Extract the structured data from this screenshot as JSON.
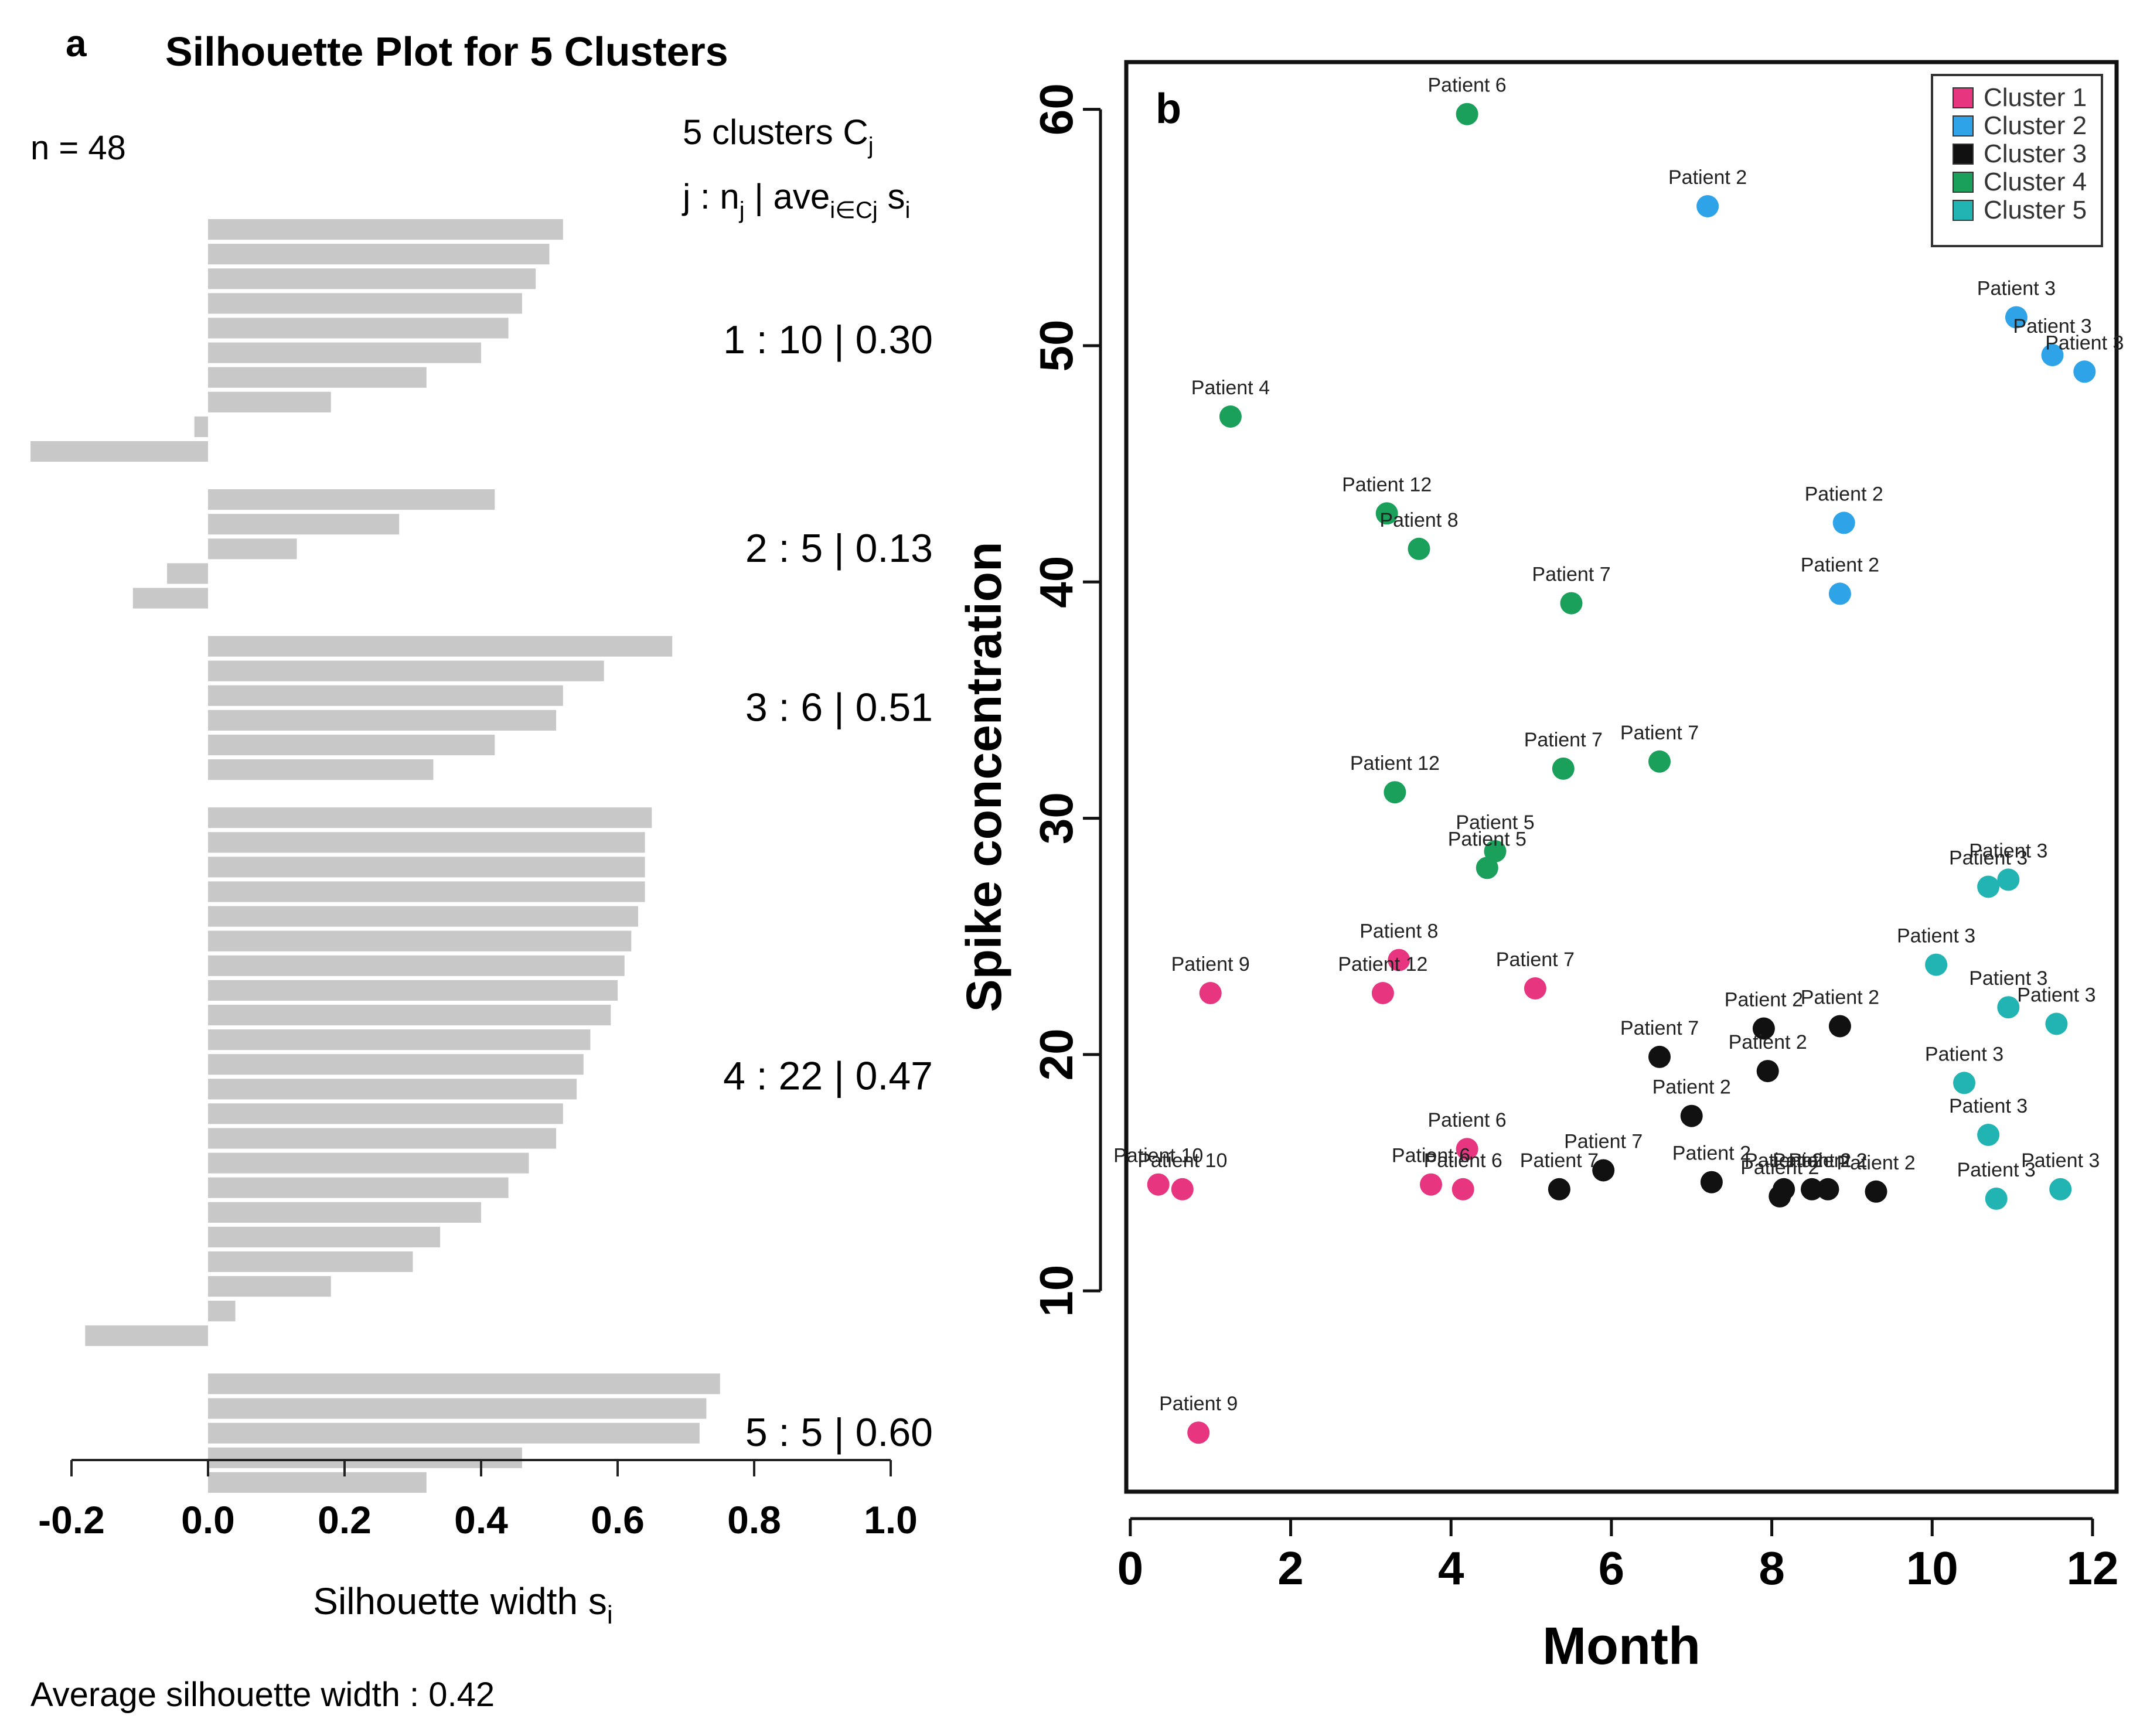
{
  "chart_data": [
    {
      "panel_label": "a",
      "type": "bar",
      "orientation": "horizontal",
      "title": "Silhouette Plot for 5 Clusters",
      "n_label": "n = 48",
      "header_line1": "5  clusters  C",
      "header_line1_sub": "j",
      "header_line2_a": "j :  n",
      "header_line2_sub1": "j",
      "header_line2_b": " | ave",
      "header_line2_sub2": "i∈Cj",
      "header_line2_c": "  s",
      "header_line2_sub3": "i",
      "xlabel": "Silhouette width s",
      "xlabel_sub": "i",
      "xlim": [
        -0.2,
        1.0
      ],
      "xticks": [
        -0.2,
        0.0,
        0.2,
        0.4,
        0.6,
        0.8,
        1.0
      ],
      "xtick_labels": [
        "-0.2",
        "0.0",
        "0.2",
        "0.4",
        "0.6",
        "0.8",
        "1.0"
      ],
      "footer": "Average silhouette width :  0.42",
      "bar_color": "#c8c8c8",
      "clusters": [
        {
          "summary": "1 :  10  |  0.30",
          "values": [
            0.52,
            0.5,
            0.48,
            0.46,
            0.44,
            0.4,
            0.32,
            0.18,
            -0.02,
            -0.26
          ]
        },
        {
          "summary": "2 :  5  |  0.13",
          "values": [
            0.42,
            0.28,
            0.13,
            -0.06,
            -0.11
          ]
        },
        {
          "summary": "3 :  6  |  0.51",
          "values": [
            0.68,
            0.58,
            0.52,
            0.51,
            0.42,
            0.33
          ]
        },
        {
          "summary": "4 :  22  |  0.47",
          "values": [
            0.65,
            0.64,
            0.64,
            0.64,
            0.63,
            0.62,
            0.61,
            0.6,
            0.59,
            0.56,
            0.55,
            0.54,
            0.52,
            0.51,
            0.47,
            0.44,
            0.4,
            0.34,
            0.3,
            0.18,
            0.04,
            -0.18
          ]
        },
        {
          "summary": "5 :  5  |  0.60",
          "values": [
            0.75,
            0.73,
            0.72,
            0.46,
            0.32
          ]
        }
      ]
    },
    {
      "panel_label": "b",
      "type": "scatter",
      "xlabel": "Month",
      "ylabel": "Spike concentration",
      "xlim": [
        -0.05,
        12.3
      ],
      "ylim": [
        1.5,
        62
      ],
      "xticks": [
        0,
        2,
        4,
        6,
        8,
        10,
        12
      ],
      "xtick_labels": [
        "0",
        "2",
        "4",
        "6",
        "8",
        "10",
        "12"
      ],
      "yticks": [
        10,
        20,
        30,
        40,
        50,
        60
      ],
      "ytick_labels": [
        "10",
        "20",
        "30",
        "40",
        "50",
        "60"
      ],
      "legend_position": "top-right",
      "series": [
        {
          "name": "Cluster 1",
          "color": "#e8357f",
          "points": [
            {
              "x": 1.0,
              "y": 22.6,
              "label": "Patient 9"
            },
            {
              "x": 0.85,
              "y": 4.0,
              "label": "Patient 9"
            },
            {
              "x": 3.35,
              "y": 24.0,
              "label": "Patient 8"
            },
            {
              "x": 3.15,
              "y": 22.6,
              "label": "Patient 12"
            },
            {
              "x": 5.05,
              "y": 22.8,
              "label": "Patient 7"
            },
            {
              "x": 4.2,
              "y": 16.0,
              "label": "Patient 6"
            },
            {
              "x": 3.75,
              "y": 14.5,
              "label": "Patient 6"
            },
            {
              "x": 4.15,
              "y": 14.3,
              "label": "Patient 6"
            },
            {
              "x": 0.35,
              "y": 14.5,
              "label": "Patient 10"
            },
            {
              "x": 0.65,
              "y": 14.3,
              "label": "Patient 10"
            }
          ]
        },
        {
          "name": "Cluster 2",
          "color": "#2ea3e8",
          "points": [
            {
              "x": 7.2,
              "y": 55.9,
              "label": "Patient 2"
            },
            {
              "x": 11.05,
              "y": 51.2,
              "label": "Patient 3"
            },
            {
              "x": 11.5,
              "y": 49.6,
              "label": "Patient 3"
            },
            {
              "x": 11.9,
              "y": 48.9,
              "label": "Patient 3"
            },
            {
              "x": 8.9,
              "y": 42.5,
              "label": "Patient 2"
            },
            {
              "x": 8.85,
              "y": 39.5,
              "label": "Patient 2"
            }
          ]
        },
        {
          "name": "Cluster 3",
          "color": "#111111",
          "points": [
            {
              "x": 6.6,
              "y": 19.9,
              "label": "Patient 7"
            },
            {
              "x": 7.9,
              "y": 21.1,
              "label": "Patient 2"
            },
            {
              "x": 8.85,
              "y": 21.2,
              "label": "Patient 2"
            },
            {
              "x": 7.95,
              "y": 19.3,
              "label": "Patient 2"
            },
            {
              "x": 7.0,
              "y": 17.4,
              "label": "Patient 2"
            },
            {
              "x": 5.9,
              "y": 15.1,
              "label": "Patient 7"
            },
            {
              "x": 5.35,
              "y": 14.3,
              "label": "Patient 7"
            },
            {
              "x": 7.25,
              "y": 14.6,
              "label": "Patient 2"
            },
            {
              "x": 8.1,
              "y": 14.0,
              "label": "Patient 2"
            },
            {
              "x": 8.15,
              "y": 14.3,
              "label": "Patient 2"
            },
            {
              "x": 8.5,
              "y": 14.3,
              "label": "Patient 2"
            },
            {
              "x": 8.7,
              "y": 14.3,
              "label": "Patient 2"
            },
            {
              "x": 9.3,
              "y": 14.2,
              "label": "Patient 2"
            }
          ]
        },
        {
          "name": "Cluster 4",
          "color": "#1aa05a",
          "points": [
            {
              "x": 4.2,
              "y": 59.8,
              "label": "Patient 6"
            },
            {
              "x": 1.25,
              "y": 47.0,
              "label": "Patient 4"
            },
            {
              "x": 3.2,
              "y": 42.9,
              "label": "Patient 12"
            },
            {
              "x": 3.6,
              "y": 41.4,
              "label": "Patient 8"
            },
            {
              "x": 5.5,
              "y": 39.1,
              "label": "Patient 7"
            },
            {
              "x": 3.3,
              "y": 31.1,
              "label": "Patient 12"
            },
            {
              "x": 5.4,
              "y": 32.1,
              "label": "Patient 7"
            },
            {
              "x": 6.6,
              "y": 32.4,
              "label": "Patient 7"
            },
            {
              "x": 4.55,
              "y": 28.6,
              "label": "Patient 5"
            },
            {
              "x": 4.45,
              "y": 27.9,
              "label": "Patient 5"
            }
          ]
        },
        {
          "name": "Cluster 5",
          "color": "#22b3b3",
          "points": [
            {
              "x": 10.95,
              "y": 27.4,
              "label": "Patient 3"
            },
            {
              "x": 10.7,
              "y": 27.1,
              "label": "Patient 3"
            },
            {
              "x": 10.05,
              "y": 23.8,
              "label": "Patient 3"
            },
            {
              "x": 10.95,
              "y": 22.0,
              "label": "Patient 3"
            },
            {
              "x": 11.55,
              "y": 21.3,
              "label": "Patient 3"
            },
            {
              "x": 10.4,
              "y": 18.8,
              "label": "Patient 3"
            },
            {
              "x": 10.7,
              "y": 16.6,
              "label": "Patient 3"
            },
            {
              "x": 10.8,
              "y": 13.9,
              "label": "Patient 3"
            },
            {
              "x": 11.6,
              "y": 14.3,
              "label": "Patient 3"
            }
          ]
        }
      ]
    }
  ]
}
